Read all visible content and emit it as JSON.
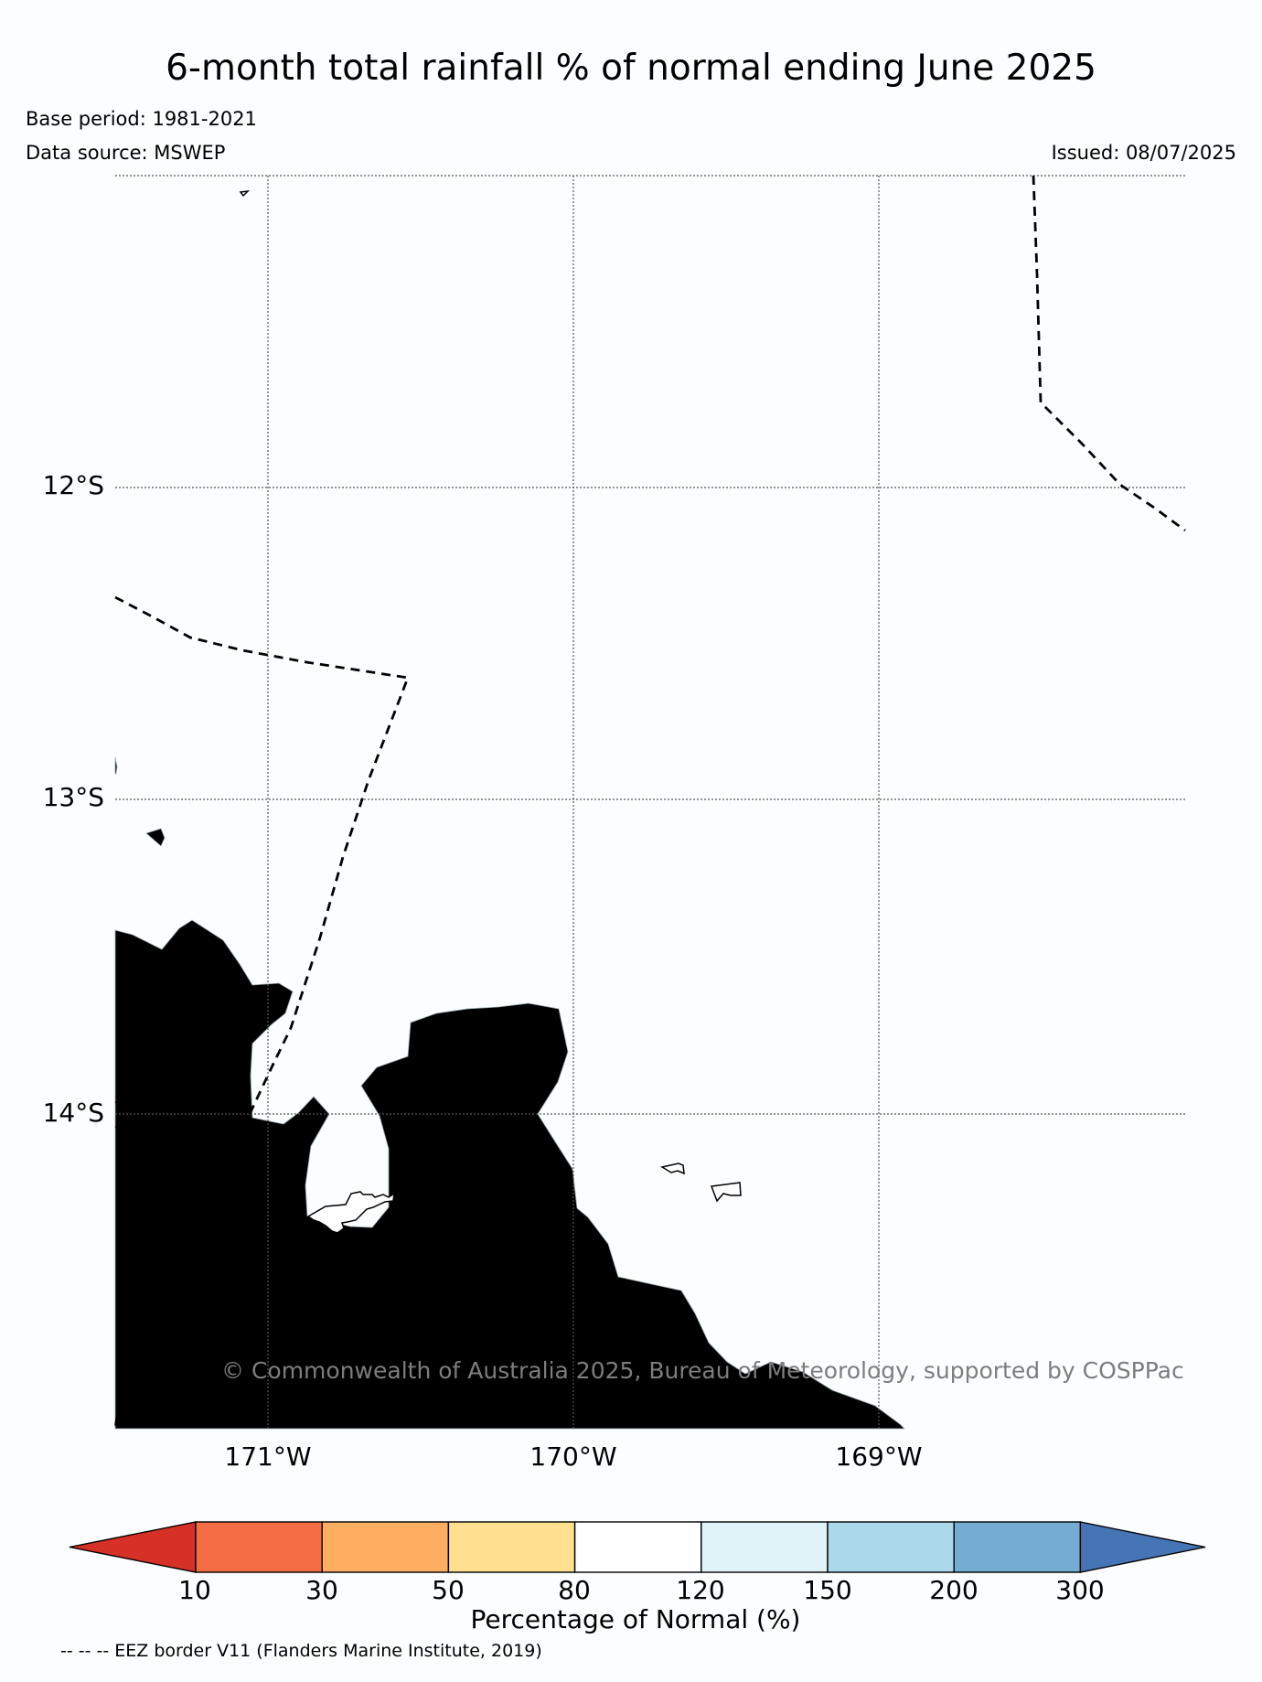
{
  "title": "6-month total rainfall % of normal ending June 2025",
  "base_period": "Base period: 1981-2021",
  "data_source": "Data source: MSWEP",
  "issued": "Issued: 08/07/2025",
  "credit": "© Commonwealth of Australia 2025, Bureau of Meteorology, supported by COSPPac",
  "lat_labels": [
    "12°S",
    "13°S",
    "14°S"
  ],
  "lon_labels": [
    "171°W",
    "170°W",
    "169°W"
  ],
  "colorbar": {
    "title": "Percentage of Normal (%)",
    "ticks": [
      "10",
      "30",
      "50",
      "80",
      "120",
      "150",
      "200",
      "300"
    ],
    "colors": [
      "#d73027",
      "#f46d43",
      "#fdae61",
      "#fee090",
      "#ffffff",
      "#e0f3f8",
      "#abd9e9",
      "#74add1",
      "#4575b4"
    ]
  },
  "eez_note": "-- -- -- EEZ border V11 (Flanders Marine Institute, 2019)",
  "map_colors": {
    "rain_fill": "#e0f3f8",
    "coastline": "#000000",
    "grid": "#555555",
    "eez": "#000000"
  }
}
